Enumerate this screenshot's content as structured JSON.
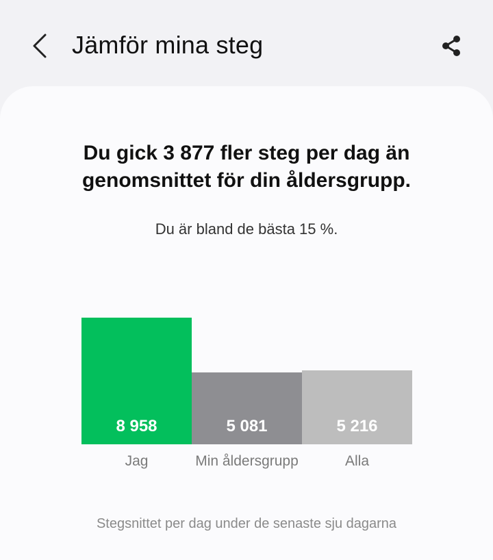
{
  "header": {
    "title": "Jämför mina steg",
    "back_icon": "chevron-left-icon",
    "share_icon": "share-icon"
  },
  "summary": {
    "headline": "Du gick 3 877 fler steg per dag än genomsnittet för din åldersgrupp.",
    "subline": "Du är bland de bästa 15 %."
  },
  "chart_data": {
    "type": "bar",
    "categories": [
      "Jag",
      "Min åldersgrupp",
      "Alla"
    ],
    "values": [
      8958,
      5081,
      5216
    ],
    "value_labels": [
      "8 958",
      "5 081",
      "5 216"
    ],
    "colors": [
      "#03bf5c",
      "#8e8e92",
      "#bdbdbd"
    ],
    "xlabel": "",
    "ylabel": "",
    "ylim": [
      0,
      8958
    ],
    "grid": false
  },
  "footnote": "Stegsnittet per dag under de senaste sju dagarna"
}
